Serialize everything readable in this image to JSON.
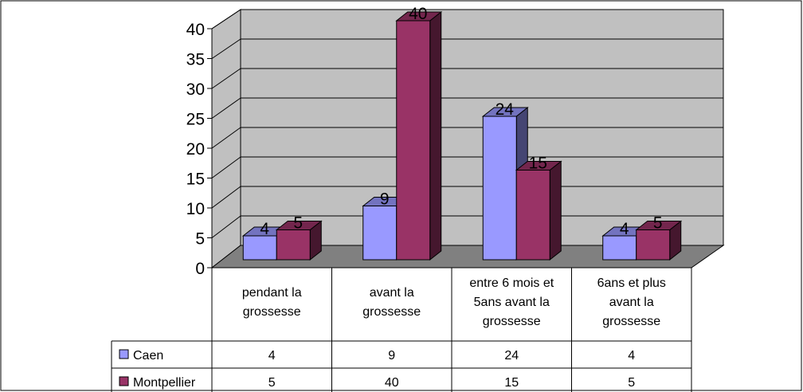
{
  "chart_data": {
    "type": "bar",
    "title": "",
    "xlabel": "",
    "ylabel": "",
    "ylim": [
      0,
      40
    ],
    "yticks": [
      "0",
      "5",
      "10",
      "15",
      "20",
      "25",
      "30",
      "35",
      "40"
    ],
    "categories": [
      [
        "pendant la",
        "grossesse"
      ],
      [
        "avant la",
        "grossesse"
      ],
      [
        "entre 6 mois et",
        "5ans avant la",
        "grossesse"
      ],
      [
        "6ans et plus",
        "avant la",
        "grossesse"
      ]
    ],
    "series": [
      {
        "name": "Caen",
        "values": [
          4,
          9,
          24,
          4
        ],
        "labels": [
          "4",
          "9",
          "24",
          "4"
        ],
        "color": "#9999ff"
      },
      {
        "name": "Montpellier",
        "values": [
          5,
          40,
          15,
          5
        ],
        "labels": [
          "5",
          "40",
          "15",
          "5"
        ],
        "color": "#993366"
      }
    ],
    "grid": true,
    "data_table": true,
    "colors": {
      "wall": "#c0c0c0",
      "floor": "#808080"
    }
  }
}
